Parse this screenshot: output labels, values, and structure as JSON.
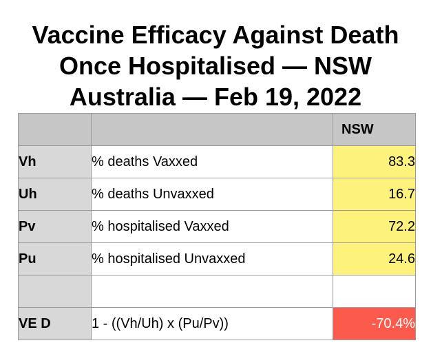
{
  "title": {
    "line1": "Vaccine Efficacy Against Death",
    "line2": "Once Hospitalised — NSW",
    "line3": "Australia — Feb 19, 2022"
  },
  "table": {
    "header": {
      "col1": "",
      "col2": "",
      "col3": "NSW"
    },
    "rows": [
      {
        "key": "Vh",
        "desc": "% deaths Vaxxed",
        "value": "83.3"
      },
      {
        "key": "Uh",
        "desc": "% deaths Unvaxxed",
        "value": "16.7"
      },
      {
        "key": "Pv",
        "desc": "% hospitalised Vaxxed",
        "value": "72.2"
      },
      {
        "key": "Pu",
        "desc": "% hospitalised Unvaxxed",
        "value": "24.6"
      },
      {
        "key": "",
        "desc": "",
        "value": ""
      },
      {
        "key": "VE D",
        "desc": "1 - ((Vh/Uh) x (Pu/Pv))",
        "value": "-70.4%"
      }
    ]
  },
  "colors": {
    "header_bg": "#c6c6c6",
    "key_bg": "#d8d8d8",
    "input_highlight": "#fcf27c",
    "result_highlight": "#fb5a4c"
  }
}
